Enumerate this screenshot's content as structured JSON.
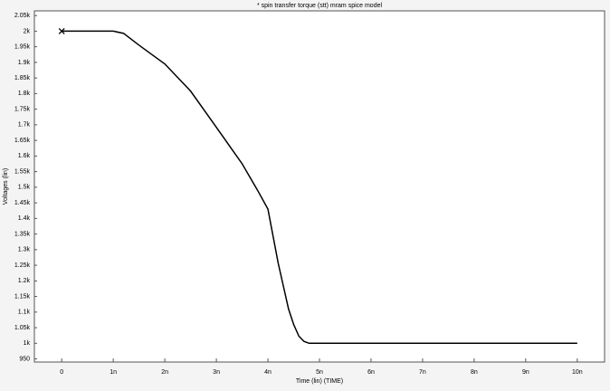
{
  "chart_data": {
    "type": "line",
    "title": "* spin transfer torque (stt) mram spice model",
    "xlabel": "Time (lin) (TIME)",
    "ylabel": "Voltages (lin)",
    "x": [
      0,
      1e-09,
      1.2e-09,
      1.5e-09,
      2e-09,
      2.5e-09,
      3e-09,
      3.5e-09,
      3.8e-09,
      4e-09,
      4.2e-09,
      4.4e-09,
      4.5e-09,
      4.6e-09,
      4.7e-09,
      4.8e-09,
      5e-09,
      1e-08
    ],
    "series": [
      {
        "color": "#000000",
        "values": [
          2000,
          2000,
          1993,
          1955,
          1895,
          1808,
          1692,
          1575,
          1490,
          1430,
          1256,
          1110,
          1060,
          1023,
          1006,
          1000,
          1000,
          1000
        ]
      }
    ],
    "xlim": [
      -5.3e-10,
      1.053e-08
    ],
    "ylim": [
      940,
      2065
    ],
    "xticks": [
      0,
      {
        "value": 1e-09,
        "label": "1n"
      },
      {
        "value": 2e-09,
        "label": "2n"
      },
      {
        "value": 3e-09,
        "label": "3n"
      },
      {
        "value": 4e-09,
        "label": "4n"
      },
      {
        "value": 5e-09,
        "label": "5n"
      },
      {
        "value": 6e-09,
        "label": "6n"
      },
      {
        "value": 7e-09,
        "label": "7n"
      },
      {
        "value": 8e-09,
        "label": "8n"
      },
      {
        "value": 9e-09,
        "label": "9n"
      },
      {
        "value": 1e-08,
        "label": "10n"
      }
    ],
    "yticks": [
      950,
      {
        "value": 1000,
        "label": "1k"
      },
      {
        "value": 1050,
        "label": "1.05k"
      },
      {
        "value": 1100,
        "label": "1.1k"
      },
      {
        "value": 1150,
        "label": "1.15k"
      },
      {
        "value": 1200,
        "label": "1.2k"
      },
      {
        "value": 1250,
        "label": "1.25k"
      },
      {
        "value": 1300,
        "label": "1.3k"
      },
      {
        "value": 1350,
        "label": "1.35k"
      },
      {
        "value": 1400,
        "label": "1.4k"
      },
      {
        "value": 1450,
        "label": "1.45k"
      },
      {
        "value": 1500,
        "label": "1.5k"
      },
      {
        "value": 1550,
        "label": "1.55k"
      },
      {
        "value": 1600,
        "label": "1.6k"
      },
      {
        "value": 1650,
        "label": "1.65k"
      },
      {
        "value": 1700,
        "label": "1.7k"
      },
      {
        "value": 1750,
        "label": "1.75k"
      },
      {
        "value": 1800,
        "label": "1.8k"
      },
      {
        "value": 1850,
        "label": "1.85k"
      },
      {
        "value": 1900,
        "label": "1.9k"
      },
      {
        "value": 1950,
        "label": "1.95k"
      },
      {
        "value": 2000,
        "label": "2k"
      },
      {
        "value": 2050,
        "label": "2.05k"
      }
    ]
  }
}
